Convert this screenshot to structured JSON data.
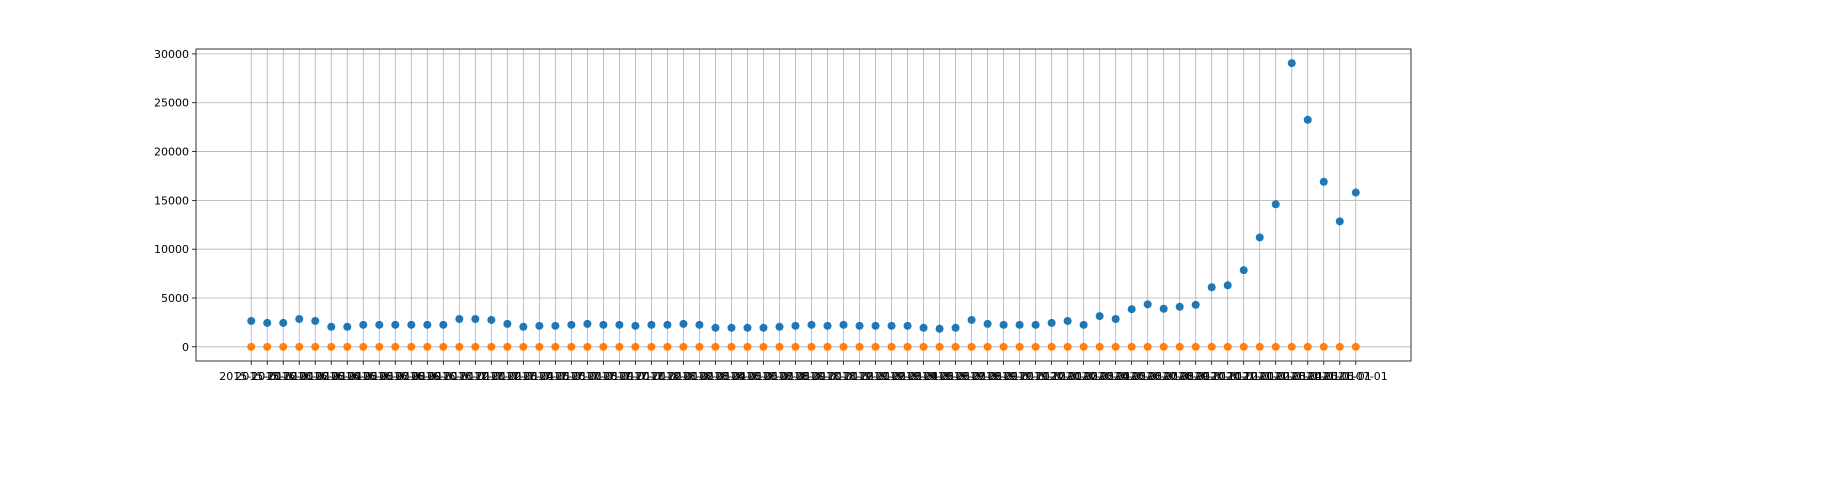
{
  "chart_data": {
    "type": "scatter",
    "categories": [
      "2015-10-01",
      "2015-11-01",
      "2015-12-01",
      "2016-01-01",
      "2016-02-01",
      "2016-03-01",
      "2016-04-01",
      "2016-05-01",
      "2016-06-01",
      "2016-07-01",
      "2016-08-01",
      "2016-09-01",
      "2016-10-01",
      "2016-11-01",
      "2016-12-01",
      "2017-01-01",
      "2017-02-01",
      "2017-03-01",
      "2017-04-01",
      "2017-05-01",
      "2017-06-01",
      "2017-07-01",
      "2017-08-01",
      "2017-09-01",
      "2017-10-01",
      "2017-11-01",
      "2017-12-01",
      "2018-01-01",
      "2018-02-01",
      "2018-03-01",
      "2018-04-01",
      "2018-05-01",
      "2018-06-01",
      "2018-07-01",
      "2018-08-01",
      "2018-09-01",
      "2018-10-01",
      "2018-11-01",
      "2018-12-01",
      "2019-01-01",
      "2019-02-01",
      "2019-03-01",
      "2019-04-01",
      "2019-05-01",
      "2019-06-01",
      "2019-07-01",
      "2019-08-01",
      "2019-09-01",
      "2019-10-01",
      "2019-11-01",
      "2019-12-01",
      "2020-01-01",
      "2020-02-01",
      "2020-03-01",
      "2020-04-01",
      "2020-05-01",
      "2020-06-01",
      "2020-07-01",
      "2020-08-01",
      "2020-09-01",
      "2020-10-01",
      "2020-11-01",
      "2020-12-01",
      "2021-01-01",
      "2021-02-01",
      "2021-03-01",
      "2021-04-01",
      "2021-05-01",
      "2021-06-01",
      "2021-07-01"
    ],
    "series": [
      {
        "color": "#1f77b4",
        "values": [
          2650,
          2450,
          2450,
          2850,
          2650,
          2050,
          2050,
          2250,
          2250,
          2250,
          2250,
          2250,
          2250,
          2850,
          2850,
          2750,
          2350,
          2050,
          2150,
          2150,
          2250,
          2350,
          2250,
          2250,
          2150,
          2250,
          2250,
          2350,
          2250,
          1950,
          1950,
          1950,
          1950,
          2050,
          2150,
          2250,
          2150,
          2250,
          2150,
          2150,
          2150,
          2150,
          1950,
          1850,
          1950,
          2750,
          2350,
          2250,
          2250,
          2250,
          2450,
          2650,
          2250,
          3150,
          2850,
          3850,
          4350,
          3900,
          4100,
          4300,
          6100,
          6300,
          7850,
          11200,
          14600,
          29050,
          23250,
          16900,
          12850,
          15800
        ]
      },
      {
        "color": "#ff7f0e",
        "values": [
          0,
          0,
          0,
          0,
          0,
          0,
          0,
          0,
          0,
          0,
          0,
          0,
          0,
          0,
          0,
          0,
          0,
          0,
          0,
          0,
          0,
          0,
          0,
          0,
          0,
          0,
          0,
          0,
          0,
          0,
          0,
          0,
          0,
          0,
          0,
          0,
          0,
          0,
          0,
          0,
          0,
          0,
          0,
          0,
          0,
          0,
          0,
          0,
          0,
          0,
          0,
          0,
          0,
          0,
          0,
          0,
          0,
          0,
          0,
          0,
          0,
          0,
          0,
          0,
          0,
          0,
          0,
          0,
          0,
          0
        ]
      }
    ],
    "ylim": [
      -1452,
      30502
    ],
    "yticks": [
      0,
      5000,
      10000,
      15000,
      20000,
      25000,
      30000
    ],
    "grid": true
  }
}
